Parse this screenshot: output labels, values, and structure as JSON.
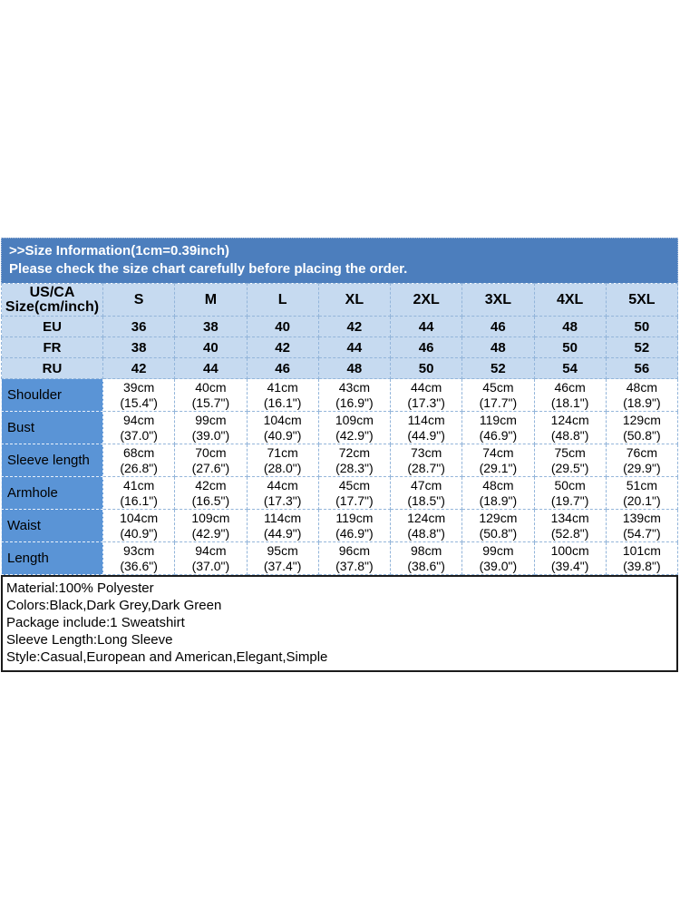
{
  "banner": {
    "line1": ">>Size Information(1cm=0.39inch)",
    "line2": "Please check the size chart carefully before placing the order."
  },
  "size_table": {
    "corner_line1": "US/CA",
    "corner_line2": "Size(cm/inch)",
    "sizes": [
      "S",
      "M",
      "L",
      "XL",
      "2XL",
      "3XL",
      "4XL",
      "5XL"
    ],
    "region_rows": [
      {
        "label": "EU",
        "values": [
          "36",
          "38",
          "40",
          "42",
          "44",
          "46",
          "48",
          "50"
        ]
      },
      {
        "label": "FR",
        "values": [
          "38",
          "40",
          "42",
          "44",
          "46",
          "48",
          "50",
          "52"
        ]
      },
      {
        "label": "RU",
        "values": [
          "42",
          "44",
          "46",
          "48",
          "50",
          "52",
          "54",
          "56"
        ]
      }
    ],
    "measurement_rows": [
      {
        "label": "Shoulder",
        "cm": [
          "39cm",
          "40cm",
          "41cm",
          "43cm",
          "44cm",
          "45cm",
          "46cm",
          "48cm"
        ],
        "inch": [
          "(15.4\")",
          "(15.7\")",
          "(16.1\")",
          "(16.9\")",
          "(17.3\")",
          "(17.7\")",
          "(18.1\")",
          "(18.9\")"
        ]
      },
      {
        "label": "Bust",
        "cm": [
          "94cm",
          "99cm",
          "104cm",
          "109cm",
          "114cm",
          "119cm",
          "124cm",
          "129cm"
        ],
        "inch": [
          "(37.0\")",
          "(39.0\")",
          "(40.9\")",
          "(42.9\")",
          "(44.9\")",
          "(46.9\")",
          "(48.8\")",
          "(50.8\")"
        ]
      },
      {
        "label": "Sleeve length",
        "cm": [
          "68cm",
          "70cm",
          "71cm",
          "72cm",
          "73cm",
          "74cm",
          "75cm",
          "76cm"
        ],
        "inch": [
          "(26.8\")",
          "(27.6\")",
          "(28.0\")",
          "(28.3\")",
          "(28.7\")",
          "(29.1\")",
          "(29.5\")",
          "(29.9\")"
        ]
      },
      {
        "label": "Armhole",
        "cm": [
          "41cm",
          "42cm",
          "44cm",
          "45cm",
          "47cm",
          "48cm",
          "50cm",
          "51cm"
        ],
        "inch": [
          "(16.1\")",
          "(16.5\")",
          "(17.3\")",
          "(17.7\")",
          "(18.5\")",
          "(18.9\")",
          "(19.7\")",
          "(20.1\")"
        ]
      },
      {
        "label": "Waist",
        "cm": [
          "104cm",
          "109cm",
          "114cm",
          "119cm",
          "124cm",
          "129cm",
          "134cm",
          "139cm"
        ],
        "inch": [
          "(40.9\")",
          "(42.9\")",
          "(44.9\")",
          "(46.9\")",
          "(48.8\")",
          "(50.8\")",
          "(52.8\")",
          "(54.7\")"
        ]
      },
      {
        "label": "Length",
        "cm": [
          "93cm",
          "94cm",
          "95cm",
          "96cm",
          "98cm",
          "99cm",
          "100cm",
          "101cm"
        ],
        "inch": [
          "(36.6\")",
          "(37.0\")",
          "(37.4\")",
          "(37.8\")",
          "(38.6\")",
          "(39.0\")",
          "(39.4\")",
          "(39.8\")"
        ]
      }
    ]
  },
  "product_details": {
    "lines": [
      "Material:100% Polyester",
      "Colors:Black,Dark Grey,Dark Green",
      "Package include:1 Sweatshirt",
      "Sleeve Length:Long Sleeve",
      "Style:Casual,European and American,Elegant,Simple"
    ]
  },
  "colors": {
    "banner_blue": "#4c7ebd",
    "label_column_blue": "#5a94d6",
    "light_cell_blue": "#c6daf0",
    "cell_border": "#93b5da",
    "text": "#000000",
    "banner_text": "#ffffff"
  }
}
